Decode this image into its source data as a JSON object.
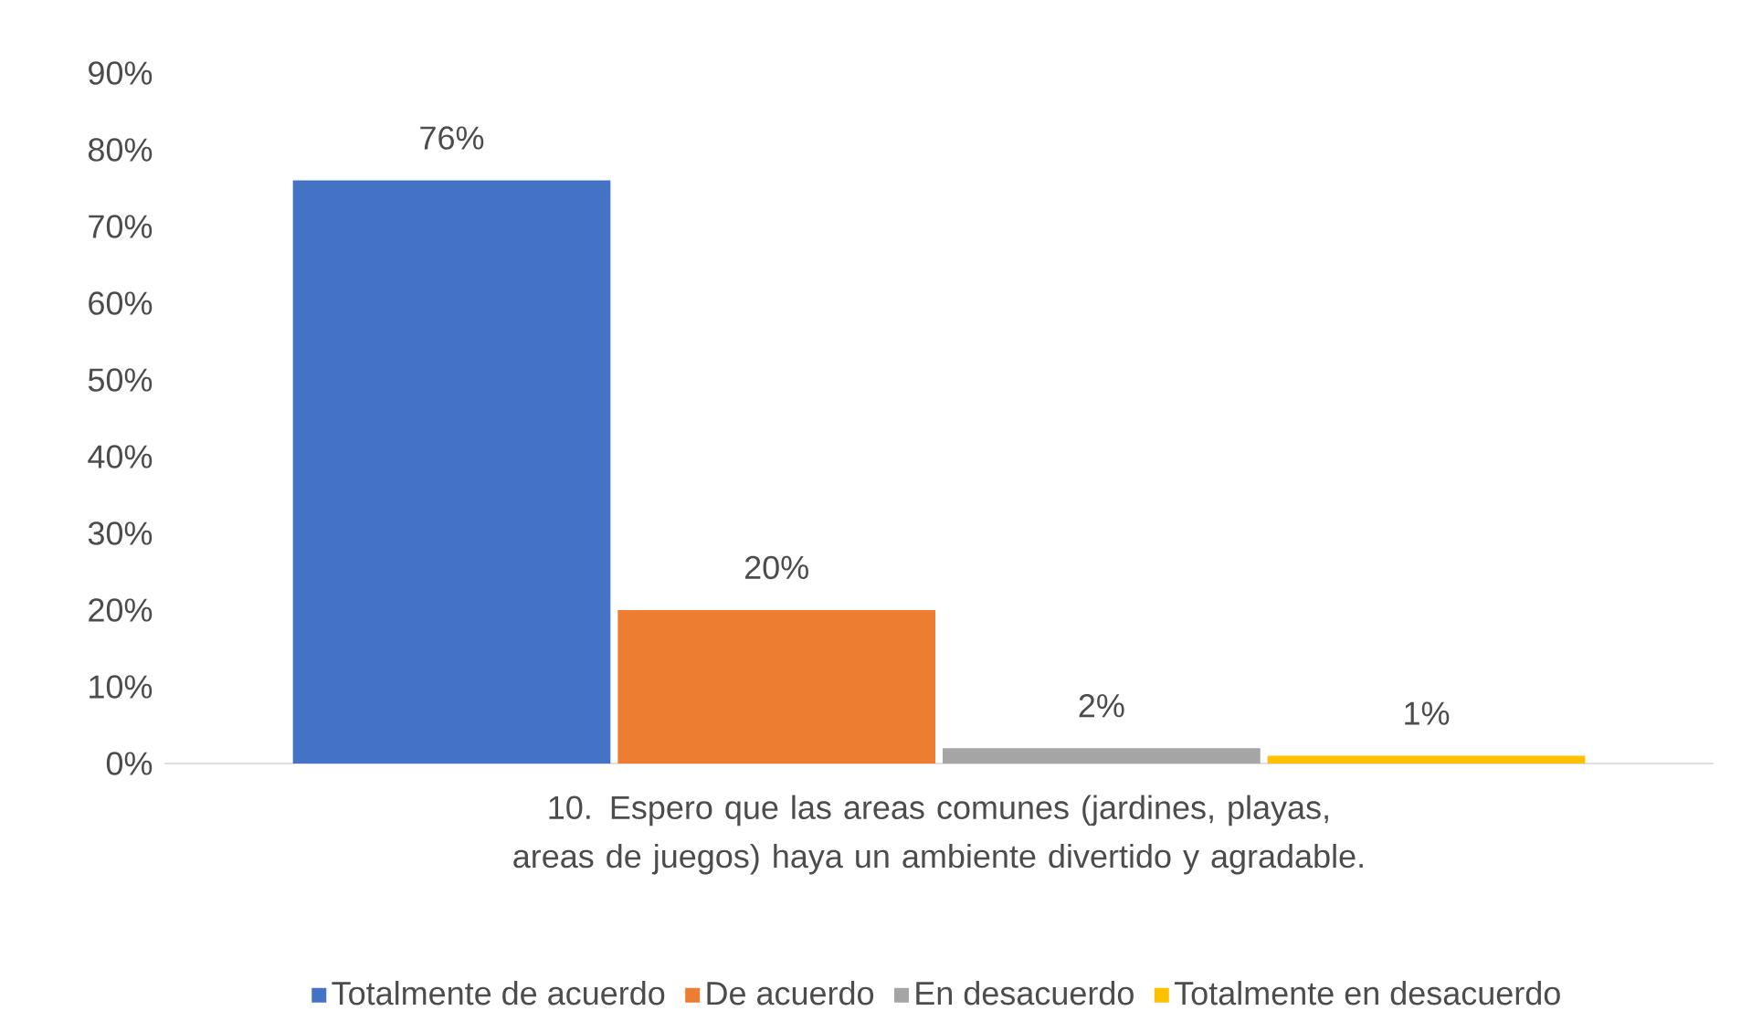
{
  "chart_data": {
    "type": "bar",
    "categories": [
      "10. Espero que las areas comunes (jardines, playas, areas de juegos) haya un ambiente divertido y agradable."
    ],
    "series": [
      {
        "name": "Totalmente de acuerdo",
        "color": "#4472c4",
        "values": [
          76
        ],
        "value_labels": [
          "76%"
        ]
      },
      {
        "name": "De acuerdo",
        "color": "#ed7d31",
        "values": [
          20
        ],
        "value_labels": [
          "20%"
        ]
      },
      {
        "name": "En desacuerdo",
        "color": "#a5a5a5",
        "values": [
          2
        ],
        "value_labels": [
          "2%"
        ]
      },
      {
        "name": "Totalmente en desacuerdo",
        "color": "#ffc000",
        "values": [
          1
        ],
        "value_labels": [
          "1%"
        ]
      }
    ],
    "ylim": [
      0,
      90
    ],
    "yticks": [
      {
        "value": 0,
        "label": "0%"
      },
      {
        "value": 10,
        "label": "10%"
      },
      {
        "value": 20,
        "label": "20%"
      },
      {
        "value": 30,
        "label": "30%"
      },
      {
        "value": 40,
        "label": "40%"
      },
      {
        "value": 50,
        "label": "50%"
      },
      {
        "value": 60,
        "label": "60%"
      },
      {
        "value": 70,
        "label": "70%"
      },
      {
        "value": 80,
        "label": "80%"
      },
      {
        "value": 90,
        "label": "90%"
      }
    ],
    "legend": "bottom"
  }
}
